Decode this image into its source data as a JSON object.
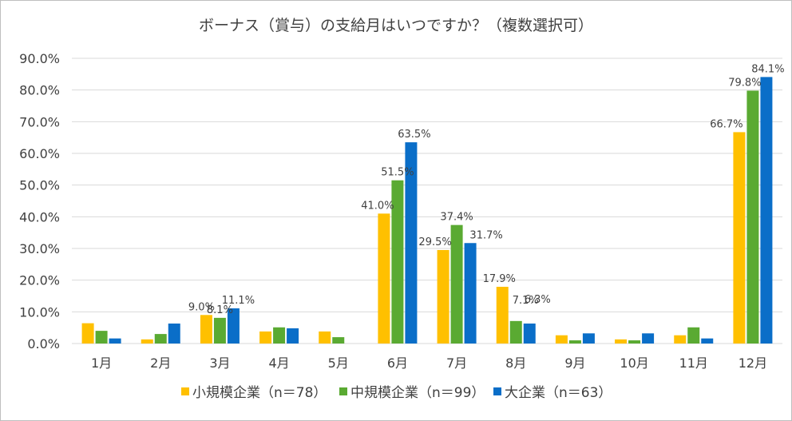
{
  "chart_data": {
    "type": "bar",
    "title": "ボーナス（賞与）の支給月はいつですか？（複数選択可）",
    "categories": [
      "1月",
      "2月",
      "3月",
      "4月",
      "5月",
      "6月",
      "7月",
      "8月",
      "9月",
      "10月",
      "11月",
      "12月"
    ],
    "y_tick_labels": [
      "0.0%",
      "10.0%",
      "20.0%",
      "30.0%",
      "40.0%",
      "50.0%",
      "60.0%",
      "70.0%",
      "80.0%",
      "90.0%"
    ],
    "ylim": [
      0,
      90
    ],
    "grid": true,
    "legend_position": "bottom",
    "series": [
      {
        "name": "小規模企業（n＝78）",
        "color": "#FFC000",
        "values": [
          6.4,
          1.3,
          9.0,
          3.8,
          3.8,
          41.0,
          29.5,
          17.9,
          2.6,
          1.3,
          2.6,
          66.7
        ]
      },
      {
        "name": "中規模企業（n＝99）",
        "color": "#5AAA32",
        "values": [
          4.0,
          3.0,
          8.1,
          5.1,
          2.0,
          51.5,
          37.4,
          7.1,
          1.0,
          1.0,
          5.1,
          79.8
        ]
      },
      {
        "name": "大企業（n＝63）",
        "color": "#0A6EC8",
        "values": [
          1.6,
          6.3,
          11.1,
          4.8,
          0.0,
          63.5,
          31.7,
          6.3,
          3.2,
          3.2,
          1.6,
          84.1
        ]
      }
    ],
    "data_labels": [
      {
        "series": 0,
        "index": 2,
        "text": "9.0%"
      },
      {
        "series": 1,
        "index": 2,
        "text": "8.1%"
      },
      {
        "series": 2,
        "index": 2,
        "text": "11.1%"
      },
      {
        "series": 0,
        "index": 5,
        "text": "41.0%"
      },
      {
        "series": 1,
        "index": 5,
        "text": "51.5%"
      },
      {
        "series": 2,
        "index": 5,
        "text": "63.5%"
      },
      {
        "series": 0,
        "index": 6,
        "text": "29.5%"
      },
      {
        "series": 1,
        "index": 6,
        "text": "37.4%"
      },
      {
        "series": 2,
        "index": 6,
        "text": "31.7%"
      },
      {
        "series": 0,
        "index": 7,
        "text": "17.9%"
      },
      {
        "series": 1,
        "index": 7,
        "text": "7.1%"
      },
      {
        "series": 2,
        "index": 7,
        "text": "6.3%"
      },
      {
        "series": 0,
        "index": 11,
        "text": "66.7%"
      },
      {
        "series": 1,
        "index": 11,
        "text": "79.8%"
      },
      {
        "series": 2,
        "index": 11,
        "text": "84.1%"
      }
    ]
  }
}
